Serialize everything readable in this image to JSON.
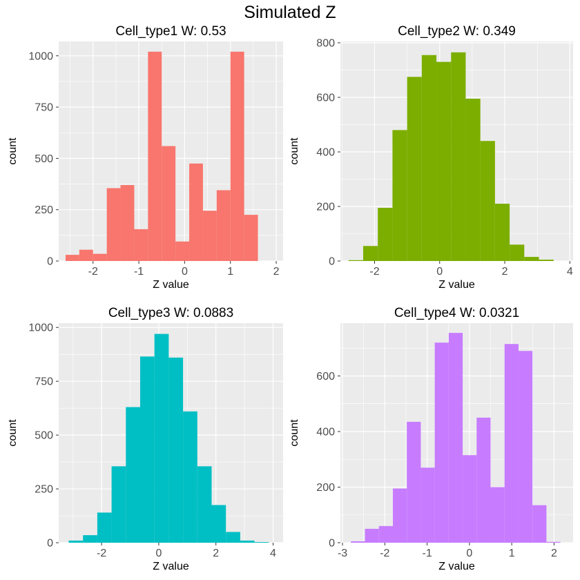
{
  "figure": {
    "title": "Simulated Z"
  },
  "colors": {
    "panel_background": "#EBEBEB",
    "gridline": "#FFFFFF",
    "axis_text": "#4D4D4D",
    "tick_mark": "#333333"
  },
  "chart_data": [
    {
      "type": "bar",
      "title": "Cell_type1  W: 0.53",
      "xlabel": "Z value",
      "ylabel": "count",
      "fill": "#F8766D",
      "xlim": [
        -2.75,
        2.15
      ],
      "ylim": [
        0,
        1070
      ],
      "xticks": [
        -2,
        -1,
        0,
        1,
        2
      ],
      "xtick_labels": [
        "-2",
        "-1",
        "0",
        "1",
        "2"
      ],
      "yticks": [
        0,
        250,
        500,
        750,
        1000
      ],
      "ytick_labels": [
        "0",
        "250",
        "500",
        "750",
        "1000"
      ],
      "bin_edges": [
        -2.6,
        -2.3,
        -2.0,
        -1.7,
        -1.4,
        -1.1,
        -0.8,
        -0.5,
        -0.2,
        0.1,
        0.4,
        0.7,
        1.0,
        1.3,
        1.6
      ],
      "values": [
        30,
        55,
        35,
        355,
        370,
        155,
        1020,
        560,
        95,
        475,
        245,
        345,
        1020,
        225
      ],
      "grid": true
    },
    {
      "type": "bar",
      "title": "Cell_type2  W: 0.349",
      "xlabel": "Z value",
      "ylabel": "count",
      "fill": "#7CAE00",
      "xlim": [
        -3.05,
        4.1
      ],
      "ylim": [
        0,
        805
      ],
      "xticks": [
        -2,
        0,
        2,
        4
      ],
      "xtick_labels": [
        "-2",
        "0",
        "2",
        "4"
      ],
      "yticks": [
        0,
        200,
        400,
        600,
        800
      ],
      "ytick_labels": [
        "0",
        "200",
        "400",
        "600",
        "800"
      ],
      "bin_edges": [
        -2.8,
        -2.35,
        -1.9,
        -1.45,
        -1.0,
        -0.55,
        -0.1,
        0.35,
        0.8,
        1.25,
        1.7,
        2.15,
        2.6,
        3.05,
        3.5
      ],
      "values": [
        3,
        55,
        195,
        480,
        675,
        755,
        730,
        765,
        595,
        440,
        210,
        60,
        15,
        5
      ],
      "grid": true
    },
    {
      "type": "bar",
      "title": "Cell_type3  W: 0.0883",
      "xlabel": "Z value",
      "ylabel": "count",
      "fill": "#00BFC4",
      "xlim": [
        -3.5,
        4.35
      ],
      "ylim": [
        0,
        1020
      ],
      "xticks": [
        -2,
        0,
        2,
        4
      ],
      "xtick_labels": [
        "-2",
        "0",
        "2",
        "4"
      ],
      "yticks": [
        0,
        250,
        500,
        750,
        1000
      ],
      "ytick_labels": [
        "0",
        "250",
        "500",
        "750",
        "1000"
      ],
      "bin_edges": [
        -3.15,
        -2.65,
        -2.15,
        -1.65,
        -1.15,
        -0.65,
        -0.15,
        0.35,
        0.85,
        1.35,
        1.85,
        2.35,
        2.85,
        3.35,
        3.85
      ],
      "values": [
        10,
        35,
        140,
        355,
        630,
        865,
        970,
        860,
        610,
        355,
        175,
        50,
        10,
        3
      ],
      "grid": true
    },
    {
      "type": "bar",
      "title": "Cell_type4  W: 0.0321",
      "xlabel": "Z value",
      "ylabel": "count",
      "fill": "#C77CFF",
      "xlim": [
        -3.05,
        2.45
      ],
      "ylim": [
        0,
        790
      ],
      "xticks": [
        -3,
        -2,
        -1,
        0,
        1,
        2
      ],
      "xtick_labels": [
        "-3",
        "-2",
        "-1",
        "0",
        "1",
        "2"
      ],
      "yticks": [
        0,
        200,
        400,
        600
      ],
      "ytick_labels": [
        "0",
        "200",
        "400",
        "600"
      ],
      "bin_edges": [
        -2.8,
        -2.47,
        -2.14,
        -1.81,
        -1.48,
        -1.15,
        -0.82,
        -0.49,
        -0.16,
        0.17,
        0.5,
        0.83,
        1.16,
        1.49,
        1.82,
        2.15
      ],
      "values": [
        5,
        50,
        60,
        195,
        435,
        270,
        720,
        755,
        315,
        450,
        200,
        715,
        690,
        135,
        3
      ],
      "grid": true
    }
  ]
}
